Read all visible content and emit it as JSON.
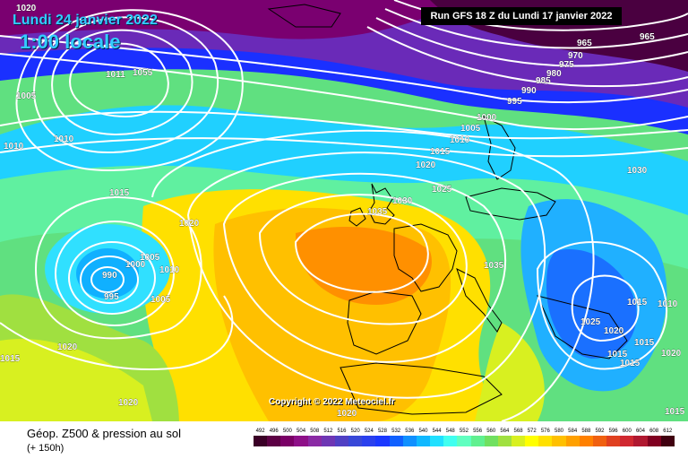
{
  "title": {
    "date": "Lundi 24 janvier 2022",
    "time": "1:00 locale"
  },
  "run_info": "Run GFS 18 Z du Lundi 17 janvier 2022",
  "copyright": "Copyright © 2022 Meteociel.fr",
  "legend": {
    "title": "Géop. Z500 & pression au sol",
    "subtitle": "(+ 150h)",
    "scale": [
      "492",
      "496",
      "500",
      "504",
      "508",
      "512",
      "516",
      "520",
      "524",
      "528",
      "532",
      "536",
      "540",
      "544",
      "548",
      "552",
      "556",
      "560",
      "564",
      "568",
      "572",
      "576",
      "580",
      "584",
      "588",
      "592",
      "596",
      "600",
      "604",
      "608",
      "612"
    ],
    "colors": [
      "#3a0026",
      "#5c0044",
      "#7a0066",
      "#8e1088",
      "#8a2aa4",
      "#6e36b4",
      "#5040c4",
      "#3848d8",
      "#2a40ee",
      "#1a38ff",
      "#1060ff",
      "#1090ff",
      "#10b8ff",
      "#20e0ff",
      "#40fff0",
      "#60ffc0",
      "#60f090",
      "#70e060",
      "#a0e040",
      "#d8f020",
      "#ffff00",
      "#ffe000",
      "#ffc000",
      "#ffa000",
      "#ff8000",
      "#f06010",
      "#e04020",
      "#d02830",
      "#b01830",
      "#800020",
      "#400010"
    ]
  },
  "pressure_labels": {
    "l1020a": "1020",
    "l1005a": "1005",
    "l1010a": "1010",
    "l1010b": "1010",
    "l1055": "1055",
    "l1011": "1011",
    "l1015a": "1015",
    "l1020b": "1020",
    "l990": "990",
    "l995a": "995",
    "l1000a": "1000",
    "l1005b": "1005",
    "l1010c": "1010",
    "l1005c": "1005",
    "l1015b": "1015",
    "l1020c": "1020",
    "l1020d": "1020",
    "l1020e": "1020",
    "l965a": "965",
    "l970": "970",
    "l975": "975",
    "l980": "980",
    "l985": "985",
    "l990b": "990",
    "l995b": "995",
    "l1000b": "1000",
    "l1005d": "1005",
    "l1010d": "1010",
    "l1015c": "1015",
    "l1020f": "1020",
    "l1025a": "1025",
    "l1030a": "1030",
    "l1035a": "1035",
    "l1030b": "1030",
    "l1035b": "1035",
    "l1025b": "1025",
    "l1020g": "1020",
    "l1015d": "1015",
    "l1015e": "1015",
    "l1015f": "1015",
    "l1015g": "1015",
    "l1010e": "1010",
    "l1020h": "1020",
    "l965b": "965",
    "l1015h": "1015"
  }
}
